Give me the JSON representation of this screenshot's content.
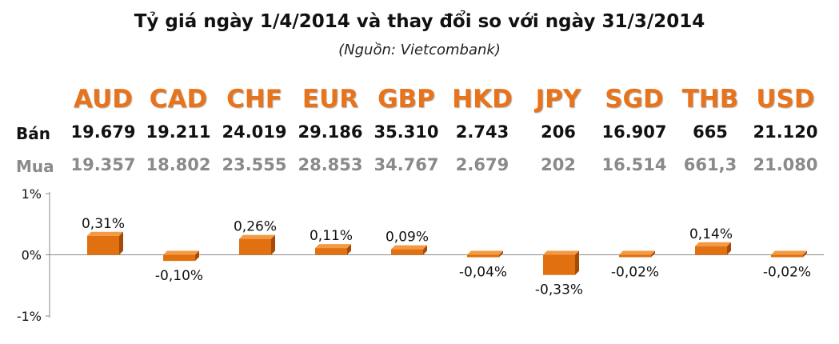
{
  "header": {
    "title": "Tỷ giá ngày 1/4/2014 và thay đổi so với ngày 31/3/2014",
    "subtitle": "(Nguồn: Vietcombank)"
  },
  "table": {
    "sell_label": "Bán",
    "buy_label": "Mua",
    "currencies": [
      "AUD",
      "CAD",
      "CHF",
      "EUR",
      "GBP",
      "HKD",
      "JPY",
      "SGD",
      "THB",
      "USD"
    ],
    "sell": [
      "19.679",
      "19.211",
      "24.019",
      "29.186",
      "35.310",
      "2.743",
      "206",
      "16.907",
      "665",
      "21.120"
    ],
    "buy": [
      "19.357",
      "18.802",
      "23.555",
      "28.853",
      "34.767",
      "2.679",
      "202",
      "16.514",
      "661,3",
      "21.080"
    ]
  },
  "colors": {
    "currency_text": "#e8731a",
    "bar": "#e07010",
    "bar_dark": "#a64a08",
    "bar_light": "#f39a44"
  },
  "chart_data": {
    "type": "bar",
    "categories": [
      "AUD",
      "CAD",
      "CHF",
      "EUR",
      "GBP",
      "HKD",
      "JPY",
      "SGD",
      "THB",
      "USD"
    ],
    "values": [
      0.31,
      -0.1,
      0.26,
      0.11,
      0.09,
      -0.04,
      -0.33,
      -0.02,
      0.14,
      -0.02
    ],
    "data_labels": [
      "0,31%",
      "-0,10%",
      "0,26%",
      "0,11%",
      "0,09%",
      "-0,04%",
      "-0,33%",
      "-0,02%",
      "0,14%",
      "-0,02%"
    ],
    "ylim": [
      -1,
      1
    ],
    "yticks": [
      1,
      0,
      -1
    ],
    "ytick_labels": [
      "1%",
      "0%",
      "-1%"
    ],
    "grid": false,
    "legend": "none"
  }
}
